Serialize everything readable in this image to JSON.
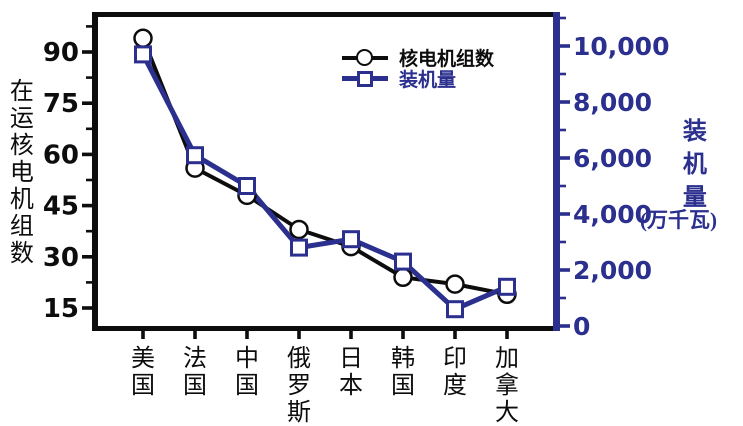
{
  "chart_data": {
    "type": "line",
    "categories": [
      "美国",
      "法国",
      "中国",
      "俄罗斯",
      "日本",
      "韩国",
      "印度",
      "加拿大"
    ],
    "series": [
      {
        "name": "核电机组数",
        "axis": "left",
        "marker": "circle",
        "color": "#0d0d0d",
        "values": [
          94,
          56,
          48,
          38,
          33,
          24,
          22,
          19
        ]
      },
      {
        "name": "装机量",
        "axis": "right",
        "marker": "square",
        "color": "#2b2f8e",
        "values": [
          9700,
          6100,
          5000,
          2800,
          3100,
          2300,
          600,
          1400
        ]
      }
    ],
    "left_axis": {
      "label": "在运核电机组数",
      "tick_labels": [
        "15",
        "30",
        "45",
        "60",
        "75",
        "90"
      ],
      "tick_values": [
        15,
        30,
        45,
        60,
        75,
        90
      ],
      "minor_tick_values": [
        22.5,
        37.5,
        52.5,
        67.5,
        82.5,
        97.5
      ]
    },
    "right_axis": {
      "label": "装机量",
      "unit": "(万千瓦)",
      "tick_labels": [
        "0",
        "2,000",
        "4,000",
        "6,000",
        "8,000",
        "10,000"
      ],
      "tick_values": [
        0,
        2000,
        4000,
        6000,
        8000,
        10000
      ],
      "minor_tick_values": [
        1000,
        3000,
        5000,
        7000,
        9000,
        11000
      ]
    },
    "legend": {
      "entries": [
        {
          "label": "核电机组数",
          "symbol": "circle",
          "color": "#0d0d0d"
        },
        {
          "label": "装机量",
          "symbol": "square",
          "color": "#2b2f8e"
        }
      ]
    },
    "grid": false,
    "legend_position": "top-center-inside"
  },
  "colors": {
    "series_black": "#0d0d0d",
    "series_blue": "#2b2f8e",
    "background": "#ffffff"
  }
}
